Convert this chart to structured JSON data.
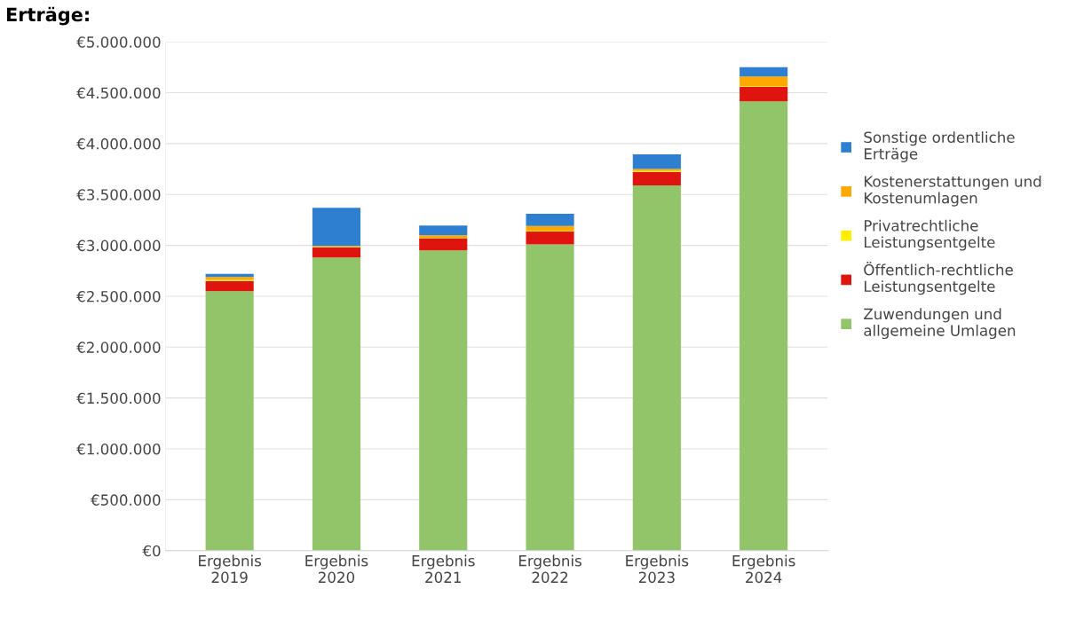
{
  "chart_data": {
    "type": "bar",
    "title": "Erträge:",
    "stacked": true,
    "categories": [
      "Ergebnis\n2019",
      "Ergebnis\n2020",
      "Ergebnis\n2021",
      "Ergebnis\n2022",
      "Ergebnis\n2023",
      "Ergebnis\n2024"
    ],
    "series": [
      {
        "name": "Zuwendungen und\nallgemeine Umlagen",
        "color": "#92c56a",
        "values": [
          2550000,
          2880000,
          2950000,
          3010000,
          3590000,
          4415000
        ]
      },
      {
        "name": "Öffentlich-rechtliche\nLeistungsentgelte",
        "color": "#e0140e",
        "values": [
          100000,
          100000,
          120000,
          125000,
          130000,
          145000
        ]
      },
      {
        "name": "Privatrechtliche\nLeistungsentgelte",
        "color": "#ffee00",
        "values": [
          10000,
          5000,
          5000,
          10000,
          10000,
          5000
        ]
      },
      {
        "name": "Kostenerstattungen und\nKostenumlagen",
        "color": "#ffa800",
        "values": [
          30000,
          10000,
          25000,
          45000,
          20000,
          95000
        ]
      },
      {
        "name": "Sonstige ordentliche\nErträge",
        "color": "#2f7fd0",
        "values": [
          30000,
          375000,
          95000,
          120000,
          145000,
          90000
        ]
      }
    ],
    "ylim": [
      0,
      5000000
    ],
    "yticks": [
      {
        "value": 0,
        "label": "€0"
      },
      {
        "value": 500000,
        "label": "€500.000"
      },
      {
        "value": 1000000,
        "label": "€1.000.000"
      },
      {
        "value": 1500000,
        "label": "€1.500.000"
      },
      {
        "value": 2000000,
        "label": "€2.000.000"
      },
      {
        "value": 2500000,
        "label": "€2.500.000"
      },
      {
        "value": 3000000,
        "label": "€3.000.000"
      },
      {
        "value": 3500000,
        "label": "€3.500.000"
      },
      {
        "value": 4000000,
        "label": "€4.000.000"
      },
      {
        "value": 4500000,
        "label": "€4.500.000"
      },
      {
        "value": 5000000,
        "label": "€5.000.000"
      }
    ],
    "grid": "y",
    "legend": "right"
  }
}
